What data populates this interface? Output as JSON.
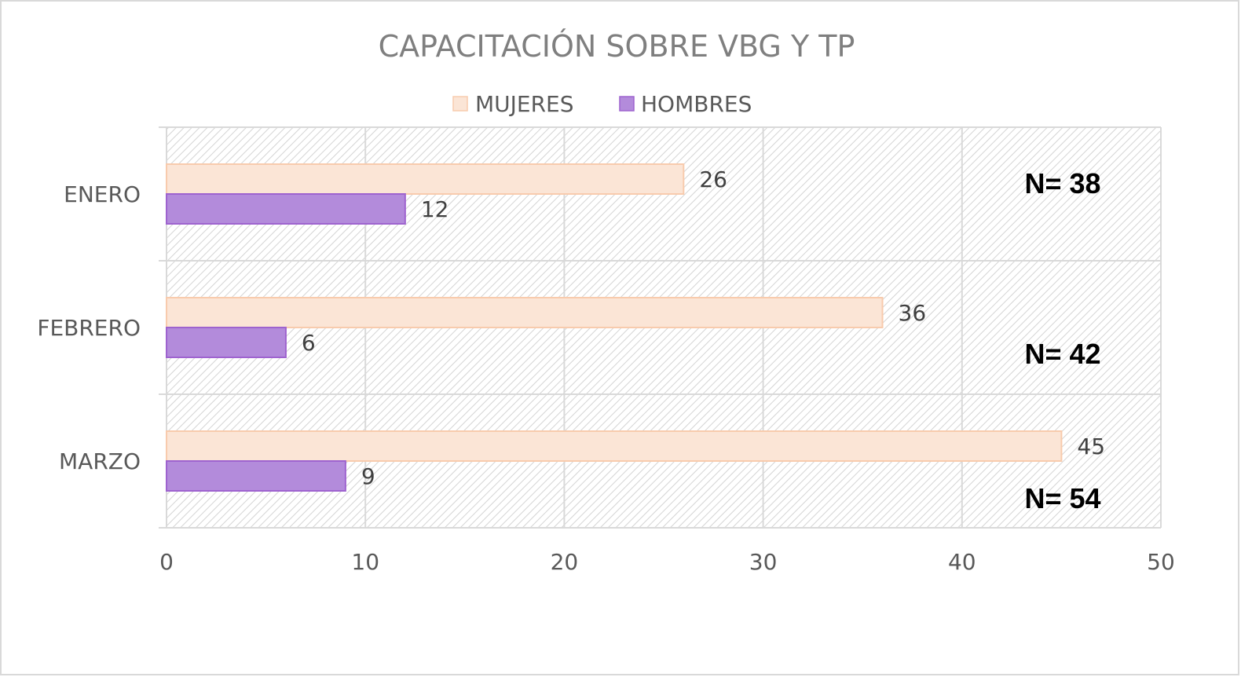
{
  "chart_data": {
    "type": "bar",
    "orientation": "horizontal",
    "title": "CAPACITACIÓN SOBRE VBG Y TP",
    "categories": [
      "ENERO",
      "FEBRERO",
      "MARZO"
    ],
    "series": [
      {
        "name": "MUJERES",
        "values": [
          26,
          36,
          45
        ],
        "color": "#fbe5d6",
        "stroke": "#f8cbad"
      },
      {
        "name": "HOMBRES",
        "values": [
          12,
          6,
          9
        ],
        "color": "#b38bdb",
        "stroke": "#9e63cf"
      }
    ],
    "annotations": [
      "N= 38",
      "N= 42",
      "N= 54"
    ],
    "xlim": [
      0,
      50
    ],
    "xticks": [
      0,
      10,
      20,
      30,
      40,
      50
    ],
    "grid": true,
    "legend": "top"
  }
}
